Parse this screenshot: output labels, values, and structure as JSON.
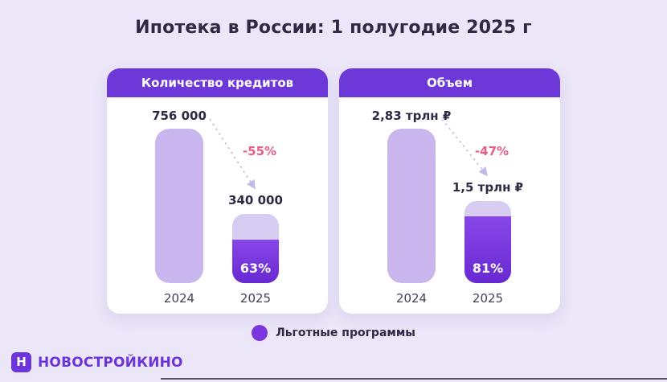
{
  "title": "Ипотека в России: 1 полугодие 2025 г",
  "panels": [
    {
      "header": "Количество кредитов",
      "change_label": "-55%",
      "bars": [
        {
          "year": "2024",
          "value_label": "756 000"
        },
        {
          "year": "2025",
          "value_label": "340 000",
          "fill_label": "63%"
        }
      ]
    },
    {
      "header": "Объем",
      "change_label": "-47%",
      "bars": [
        {
          "year": "2024",
          "value_label": "2,83 трлн ₽"
        },
        {
          "year": "2025",
          "value_label": "1,5 трлн ₽",
          "fill_label": "81%"
        }
      ]
    }
  ],
  "legend": {
    "label": "Льготные программы",
    "dot_color": "#7b36e0"
  },
  "logo": {
    "icon_letter": "Н",
    "text": "НОВОСТРОЙКИНО"
  },
  "colors": {
    "background": "#ebe7f8",
    "accent_purple": "#6d38d8",
    "bar_light": "#c9b6ee",
    "bar_fill_top": "#8747e8",
    "bar_fill_bottom": "#6929d2",
    "negative_pink": "#e75d85",
    "text_dark": "#2e2a45"
  },
  "chart_data": {
    "type": "bar",
    "title": "Ипотека в России: 1 полугодие 2025 г",
    "legend": [
      "Льготные программы"
    ],
    "legend_position": "bottom",
    "panels": [
      {
        "title": "Количество кредитов",
        "categories": [
          "2024",
          "2025"
        ],
        "values": [
          756000,
          340000
        ],
        "unit": "loans",
        "change_pct": -55,
        "subsidized_share_pct": 63
      },
      {
        "title": "Объем",
        "categories": [
          "2024",
          "2025"
        ],
        "values": [
          2.83,
          1.5
        ],
        "unit": "трлн ₽",
        "change_pct": -47,
        "subsidized_share_pct": 81
      }
    ]
  }
}
